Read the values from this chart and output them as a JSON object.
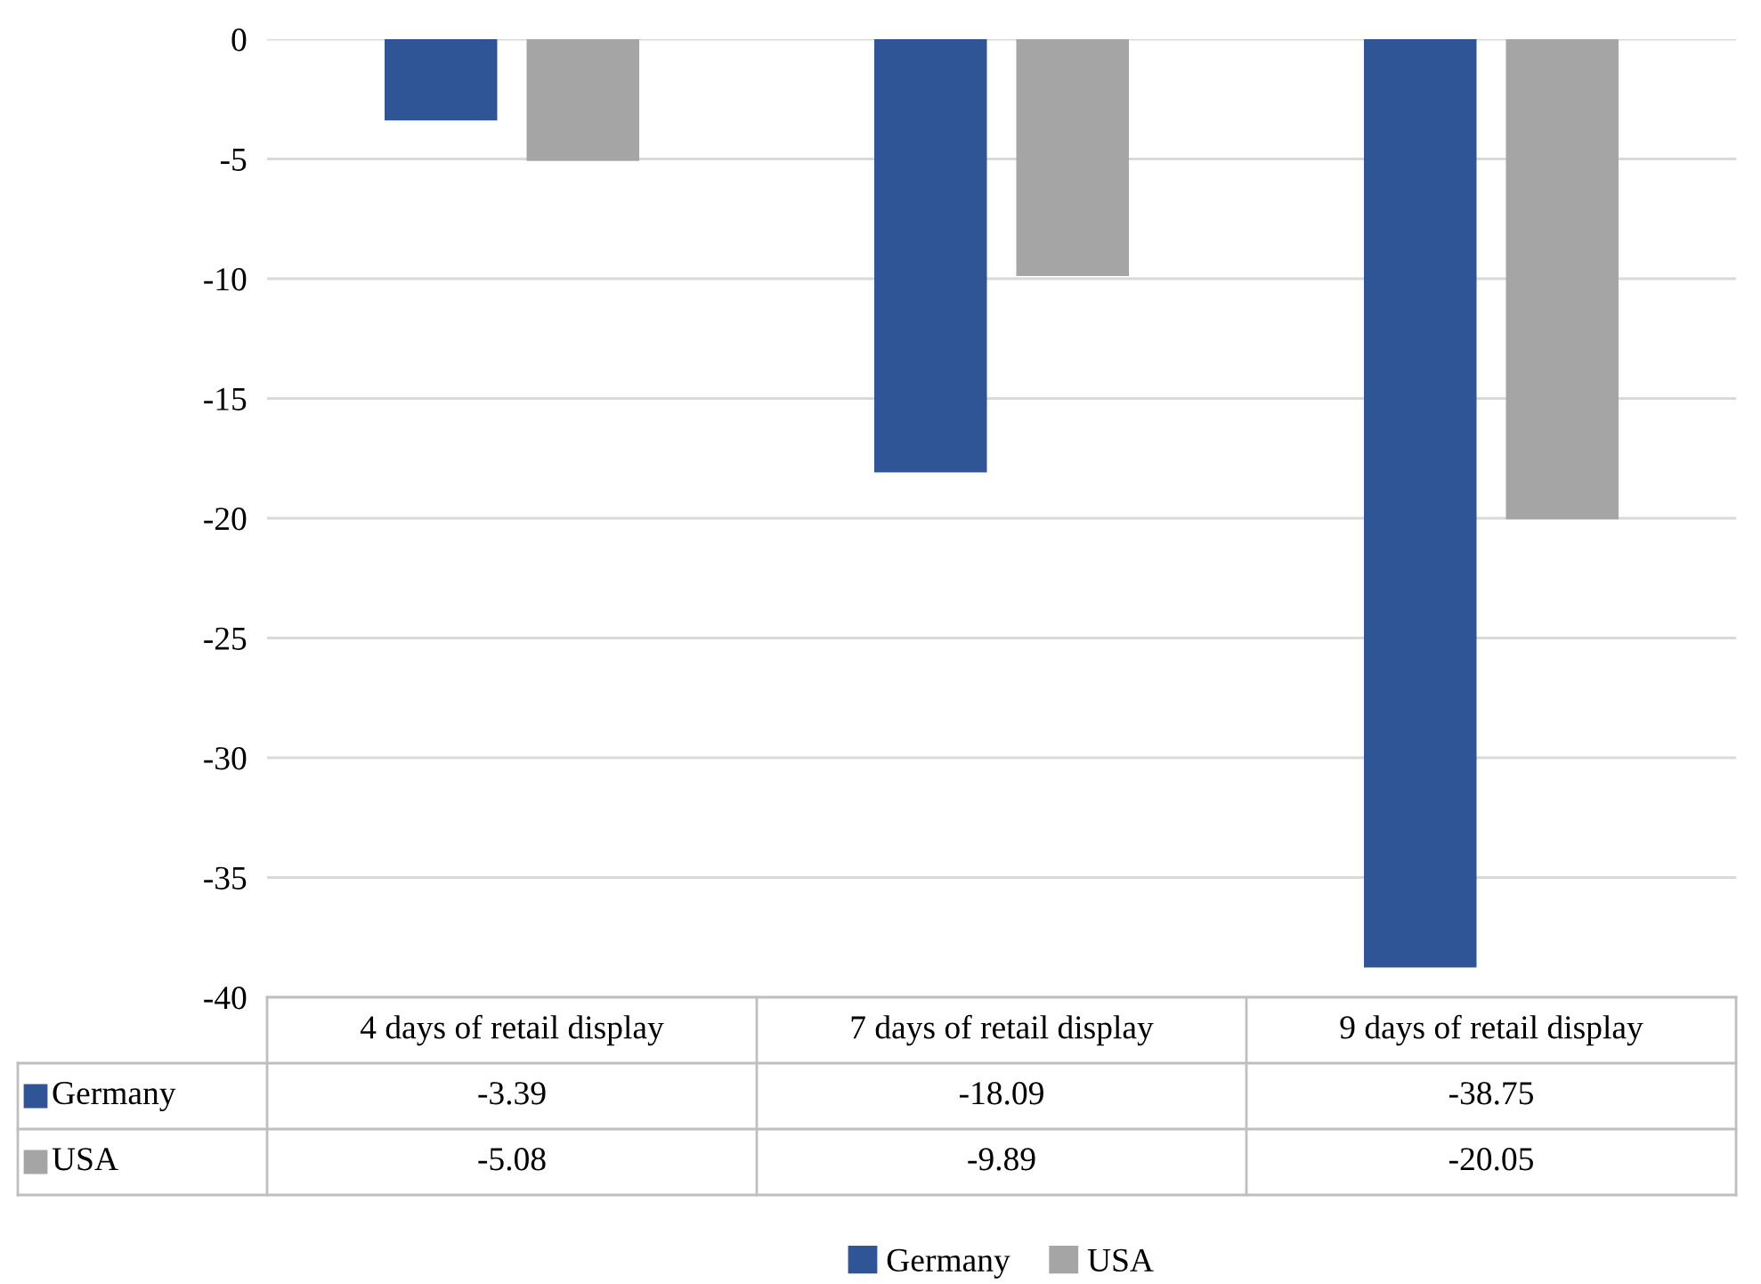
{
  "chart_data": {
    "type": "bar",
    "categories": [
      "4 days of retail display",
      "7 days of retail display",
      "9 days of retail display"
    ],
    "series": [
      {
        "name": "Germany",
        "color": "#2f5597",
        "values": [
          -3.39,
          -18.09,
          -38.75
        ]
      },
      {
        "name": "USA",
        "color": "#a5a5a5",
        "values": [
          -5.08,
          -9.89,
          -20.05
        ]
      }
    ],
    "ylim": [
      -40,
      0
    ],
    "yticks": [
      0,
      -5,
      -10,
      -15,
      -20,
      -25,
      -30,
      -35,
      -40
    ],
    "grid": "y",
    "legend": "bottom",
    "data_labels": true
  }
}
